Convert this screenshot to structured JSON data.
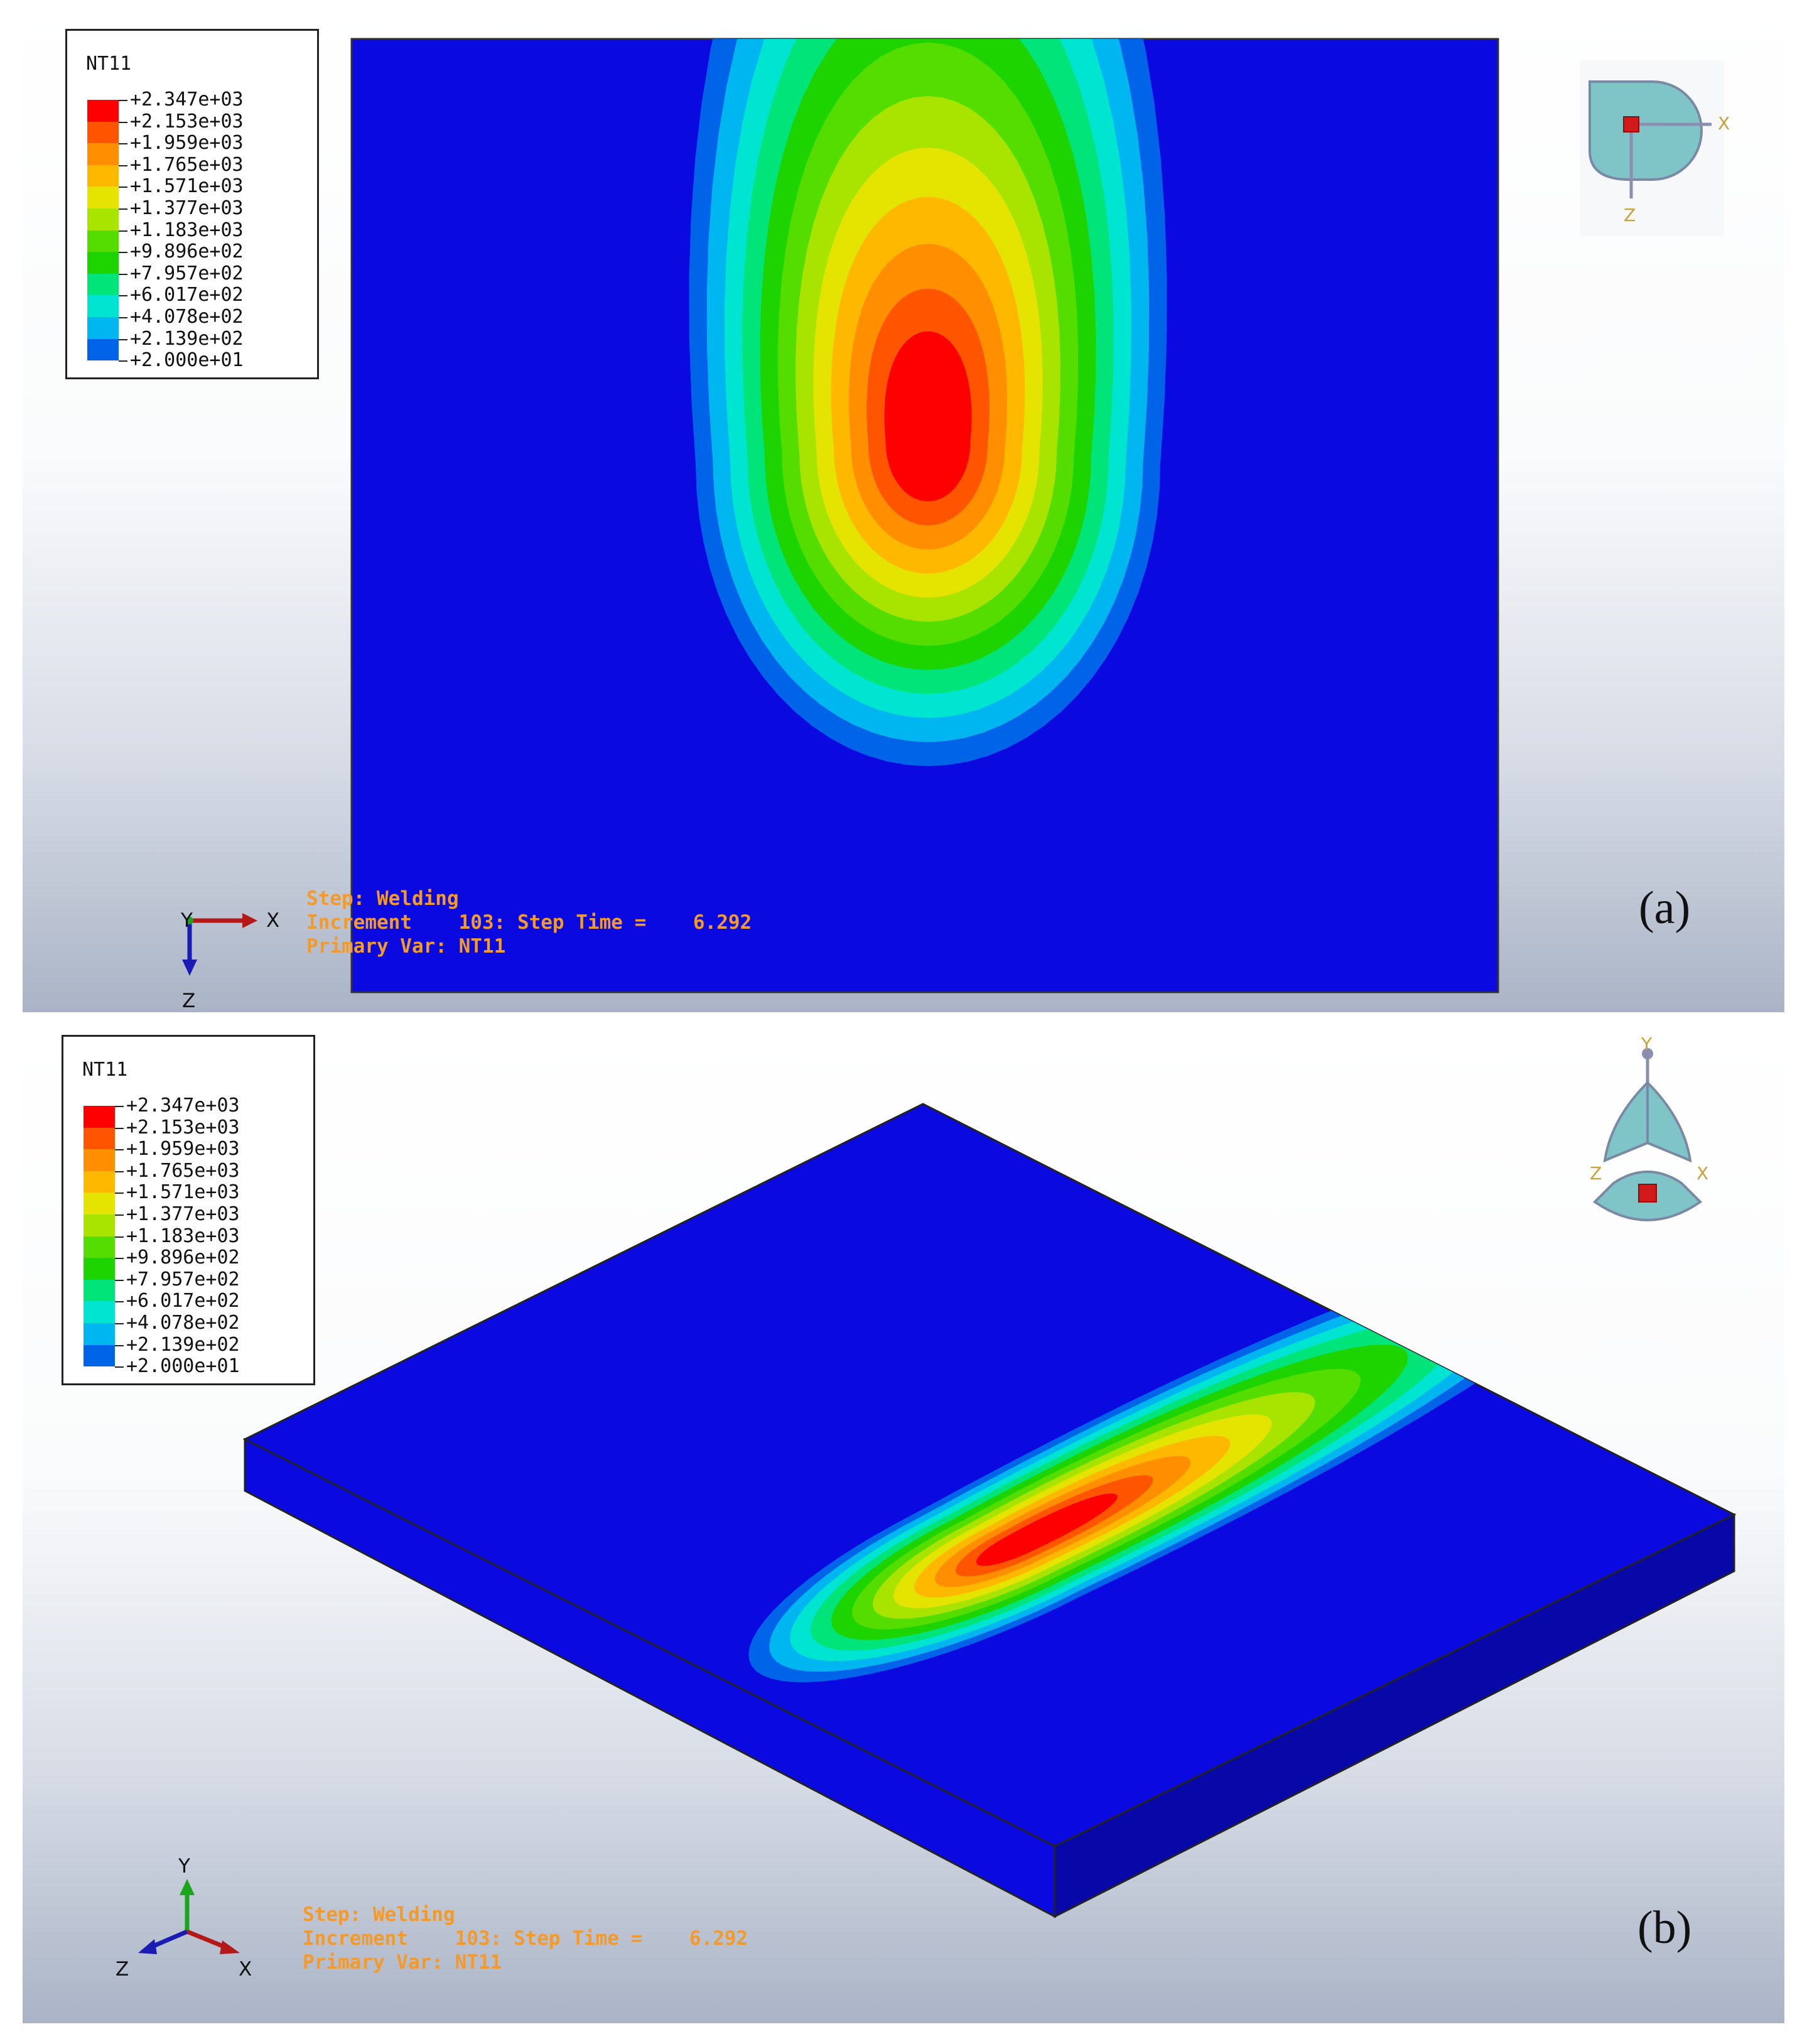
{
  "legend": {
    "title": "NT11",
    "levels": [
      {
        "value": "+2.347e+03",
        "color": "#ff0000"
      },
      {
        "value": "+2.153e+03",
        "color": "#ff5400"
      },
      {
        "value": "+1.959e+03",
        "color": "#ff8f00"
      },
      {
        "value": "+1.765e+03",
        "color": "#ffb800"
      },
      {
        "value": "+1.571e+03",
        "color": "#e4e400"
      },
      {
        "value": "+1.377e+03",
        "color": "#a9e400"
      },
      {
        "value": "+1.183e+03",
        "color": "#55dd00"
      },
      {
        "value": "+9.896e+02",
        "color": "#1ed400"
      },
      {
        "value": "+7.957e+02",
        "color": "#00e47a"
      },
      {
        "value": "+6.017e+02",
        "color": "#00e4d2"
      },
      {
        "value": "+4.078e+02",
        "color": "#00b6f0"
      },
      {
        "value": "+2.139e+02",
        "color": "#0064e8"
      },
      {
        "value": "+2.000e+01",
        "color": "#0a0ae0"
      }
    ]
  },
  "status": {
    "line1": "Step: Welding",
    "line2": "Increment    103: Step Time =    6.292",
    "line3": "Primary Var: NT11"
  },
  "panels": {
    "a": {
      "label": "(a)"
    },
    "b": {
      "label": "(b)"
    }
  },
  "triad": {
    "x": "X",
    "y": "Y",
    "z": "Z"
  },
  "colors": {
    "plate": "#0a0ae0",
    "plate_side": "#0808a8",
    "status_text": "#f39a2b"
  }
}
